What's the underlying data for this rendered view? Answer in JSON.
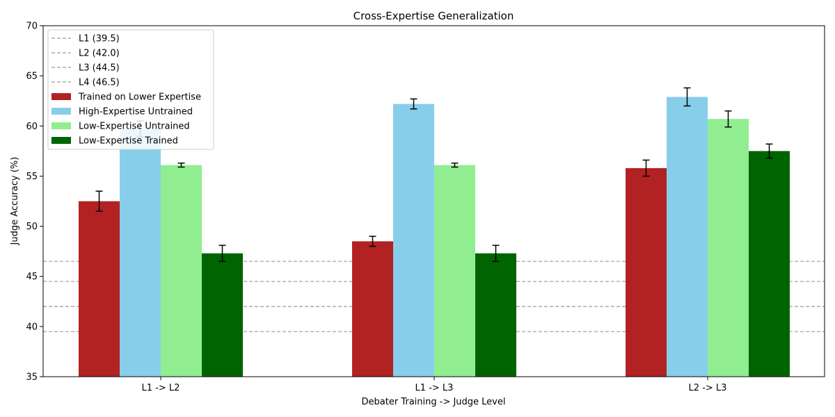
{
  "chart_data": {
    "type": "bar",
    "title": "Cross-Expertise Generalization",
    "xlabel": "Debater Training -> Judge Level",
    "ylabel": "Judge Accuracy (%)",
    "ylim": [
      35,
      70
    ],
    "yticks": [
      35,
      40,
      45,
      50,
      55,
      60,
      65,
      70
    ],
    "categories": [
      "L1 -> L2",
      "L1 -> L3",
      "L2 -> L3"
    ],
    "series": [
      {
        "name": "Trained on Lower Expertise",
        "color": "#b22222",
        "values": [
          52.5,
          48.5,
          55.8
        ],
        "errors": [
          1.0,
          0.5,
          0.8
        ]
      },
      {
        "name": "High-Expertise Untrained",
        "color": "#87ceeb",
        "values": [
          59.7,
          62.2,
          62.9
        ],
        "errors": [
          0.8,
          0.5,
          0.9
        ]
      },
      {
        "name": "Low-Expertise Untrained",
        "color": "#90ee90",
        "values": [
          56.1,
          56.1,
          60.7
        ],
        "errors": [
          0.2,
          0.2,
          0.8
        ]
      },
      {
        "name": "Low-Expertise Trained",
        "color": "#006400",
        "values": [
          47.3,
          47.3,
          57.5
        ],
        "errors": [
          0.8,
          0.8,
          0.7
        ]
      }
    ],
    "reference_lines": [
      {
        "name": "L1 (39.5)",
        "value": 39.5,
        "color": "#999999"
      },
      {
        "name": "L2 (42.0)",
        "value": 42.0,
        "color": "#999999"
      },
      {
        "name": "L3 (44.5)",
        "value": 44.5,
        "color": "#999999"
      },
      {
        "name": "L4 (46.5)",
        "value": 46.5,
        "color": "#999999"
      }
    ],
    "legend_position": "top-left",
    "grid": false
  }
}
